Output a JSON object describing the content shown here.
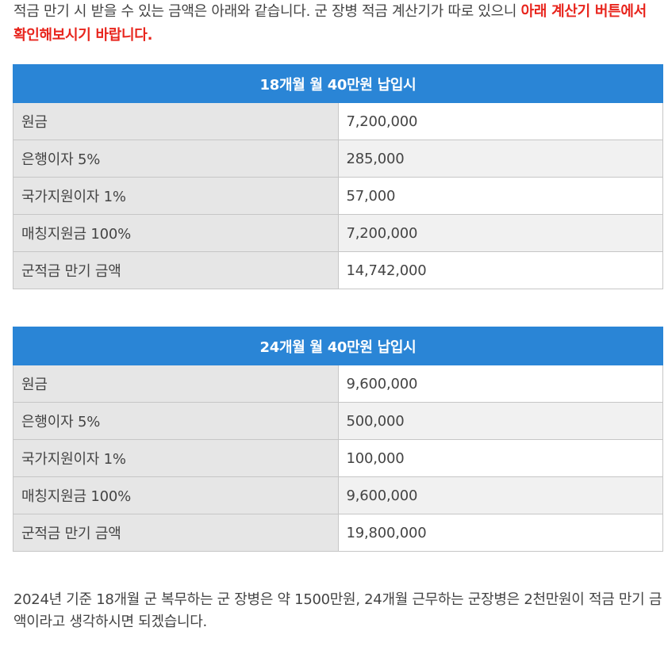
{
  "intro": {
    "text_plain": "적금 만기 시 받을 수 있는 금액은 아래와 같습니다. 군 장병 적금 계산기가 따로 있으니 ",
    "text_highlight": "아래 계산기 버튼에서 확인해보시기 바랍니다."
  },
  "tables": [
    {
      "header": "18개월 월 40만원 납입시",
      "rows": [
        {
          "label": "원금",
          "value": "7,200,000"
        },
        {
          "label": "은행이자 5%",
          "value": "285,000"
        },
        {
          "label": "국가지원이자 1%",
          "value": "57,000"
        },
        {
          "label": "매칭지원금 100%",
          "value": "7,200,000"
        },
        {
          "label": "군적금 만기 금액",
          "value": "14,742,000"
        }
      ]
    },
    {
      "header": "24개월 월 40만원 납입시",
      "rows": [
        {
          "label": "원금",
          "value": "9,600,000"
        },
        {
          "label": "은행이자 5%",
          "value": "500,000"
        },
        {
          "label": "국가지원이자 1%",
          "value": "100,000"
        },
        {
          "label": "매칭지원금 100%",
          "value": "9,600,000"
        },
        {
          "label": "군적금 만기 금액",
          "value": "19,800,000"
        }
      ]
    }
  ],
  "summary": "2024년 기준 18개월 군 복무하는 군 장병은 약 1500만원, 24개월 근무하는 군장병은 2천만원이 적금 만기 금액이라고 생각하시면 되겠습니다.",
  "colors": {
    "header_bg": "#2a85d6",
    "highlight_text": "#e8251d",
    "label_bg": "#e6e6e6",
    "alt_row_bg": "#f1f1f1"
  }
}
